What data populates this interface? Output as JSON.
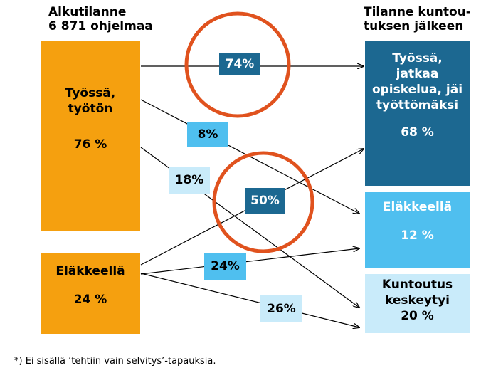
{
  "left_heading": "Alkutilanne\n6 871 ohjelmaa",
  "right_heading": "Tilanne kuntou-\ntuksen jälkeen",
  "left_boxes": [
    {
      "label": "Työssä,\ntyötön",
      "value": "76 %",
      "color": "#f5a00f"
    },
    {
      "label": "Eläkkeellä",
      "value": "24 %",
      "color": "#f5a00f"
    }
  ],
  "right_boxes": [
    {
      "label": "Työssä,\njatkaa\nopiskelua, jäi\ntyöttömäksi",
      "value": "68 %",
      "color": "#1c6891",
      "text_color": "#ffffff"
    },
    {
      "label": "Eläkkeellä",
      "value": "12 %",
      "color": "#4fbfef",
      "text_color": "#ffffff"
    },
    {
      "label": "Kuntoutus\nkeskeytyi",
      "value": "20 %",
      "color": "#c9ebfa",
      "text_color": "#000000"
    }
  ],
  "flows": [
    {
      "from": "Työssä, työtön",
      "to": "Työssä, jatkaa opiskelua, jäi työttömäksi",
      "label": "74%",
      "highlighted": true,
      "label_color": "#1c6891",
      "text_color": "#ffffff"
    },
    {
      "from": "Työssä, työtön",
      "to": "Eläkkeellä",
      "label": "8%",
      "highlighted": false,
      "label_color": "#4fbfef",
      "text_color": "#000000"
    },
    {
      "from": "Työssä, työtön",
      "to": "Kuntoutus keskeytyi",
      "label": "18%",
      "highlighted": false,
      "label_color": "#c9ebfa",
      "text_color": "#000000"
    },
    {
      "from": "Eläkkeellä",
      "to": "Työssä, jatkaa opiskelua, jäi työttömäksi",
      "label": "50%",
      "highlighted": true,
      "label_color": "#1c6891",
      "text_color": "#ffffff"
    },
    {
      "from": "Eläkkeellä",
      "to": "Eläkkeellä",
      "label": "24%",
      "highlighted": false,
      "label_color": "#4fbfef",
      "text_color": "#000000"
    },
    {
      "from": "Eläkkeellä",
      "to": "Kuntoutus keskeytyi",
      "label": "26%",
      "highlighted": false,
      "label_color": "#c9ebfa",
      "text_color": "#000000"
    }
  ],
  "highlight_color": "#e0521e",
  "footnote": "*) Ei sisällä ’tehtiin vain selvitys’-tapauksia."
}
